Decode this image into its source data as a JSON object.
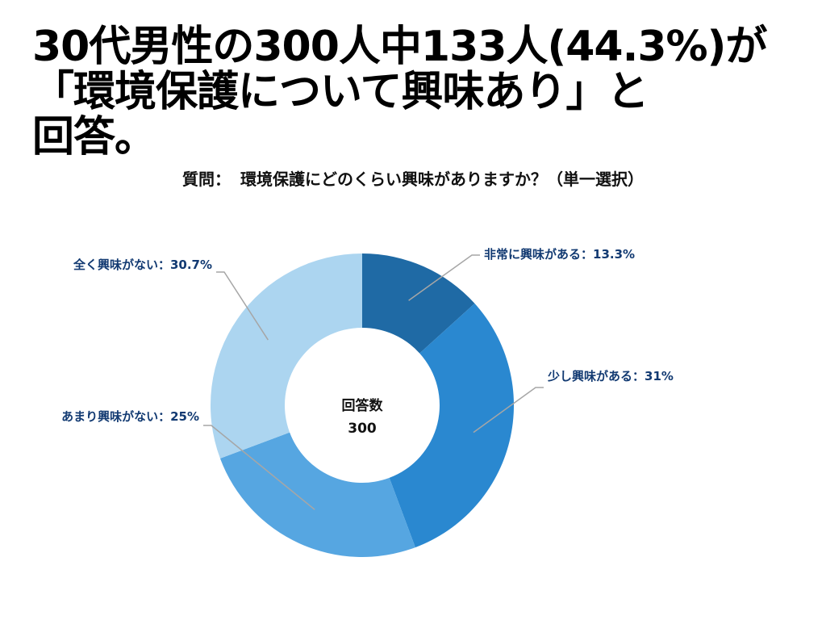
{
  "headline": {
    "line1": "30代男性の300人中133人(44.3%)が",
    "line2": "「環境保護について興味あり」と",
    "line3": "回答。"
  },
  "question": {
    "prefix": "質問：",
    "text": "環境保護にどのくらい興味がありますか？（単一選択）"
  },
  "chart_data": {
    "type": "pie",
    "variant": "donut",
    "title": "",
    "center_label": "回答数",
    "center_value": "300",
    "unit": "%",
    "slices": [
      {
        "name": "非常に興味がある",
        "value": 13.3,
        "label": "非常に興味がある：13.3%",
        "color": "#1f6aa5"
      },
      {
        "name": "少し興味がある",
        "value": 31,
        "label": "少し興味がある：31%",
        "color": "#2a88d0"
      },
      {
        "name": "あまり興味がない",
        "value": 25,
        "label": "あまり興味がない：25%",
        "color": "#56a6e1"
      },
      {
        "name": "全く興味がない",
        "value": 30.7,
        "label": "全く興味がない：30.7%",
        "color": "#acd5f0"
      }
    ]
  }
}
